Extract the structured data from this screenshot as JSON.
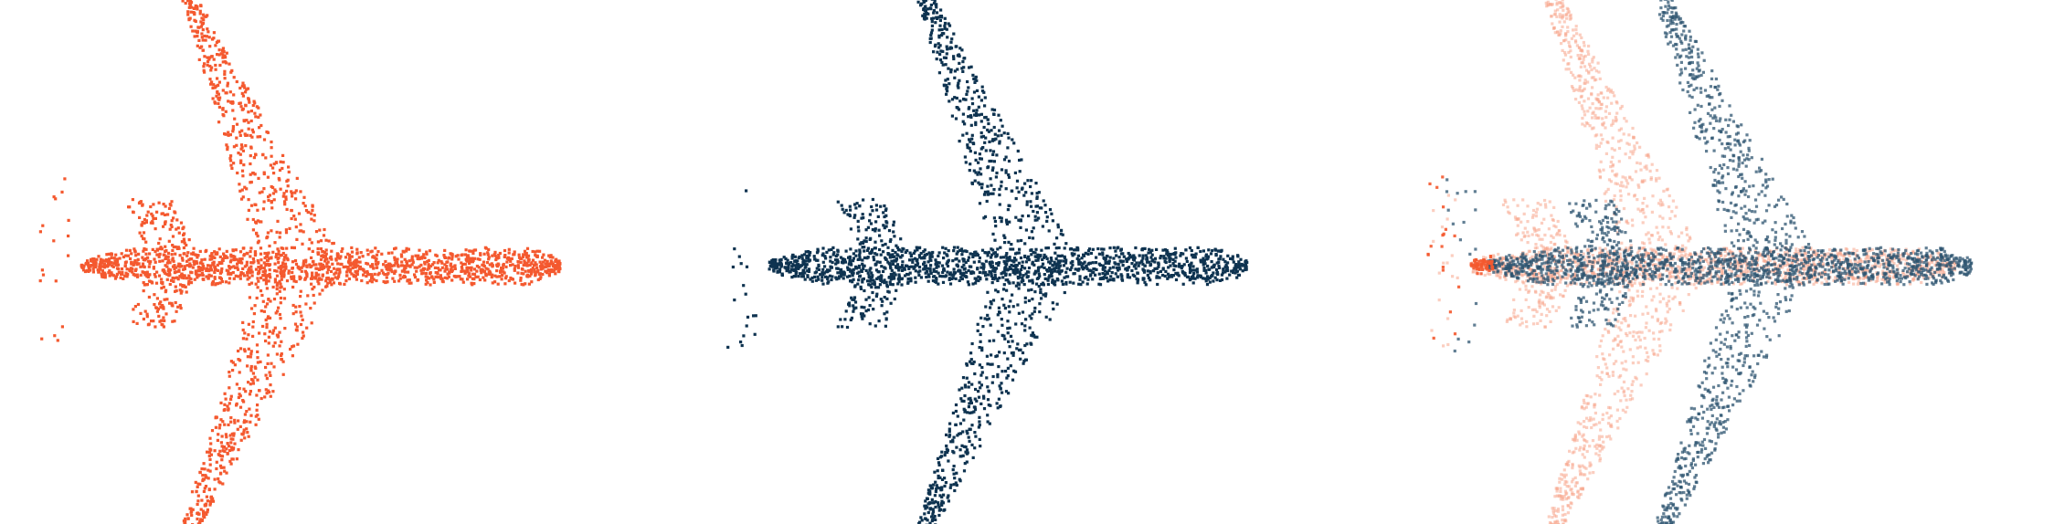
{
  "panels": [
    {
      "id": "source-airplane",
      "name": "",
      "clouds": [
        {
          "id": "source",
          "color": "#f4592f",
          "opacity": 1.0,
          "wing_shift": 0,
          "x_shift": 0,
          "y_shift": 0,
          "seed": 11
        }
      ]
    },
    {
      "id": "target-airplane",
      "name": "",
      "clouds": [
        {
          "id": "target",
          "color": "#0e3350",
          "opacity": 1.0,
          "wing_shift": 0.09,
          "x_shift": 0.02,
          "y_shift": 0.0,
          "seed": 23
        }
      ]
    },
    {
      "id": "overlay-airplane",
      "name": "",
      "clouds": [
        {
          "id": "source-faded",
          "color": "#f7a58c",
          "opacity": 0.55,
          "wing_shift": -0.05,
          "x_shift": 0,
          "y_shift": 0.0,
          "seed": 37
        },
        {
          "id": "target-overlay",
          "color": "#2e5470",
          "opacity": 0.75,
          "wing_shift": 0.12,
          "x_shift": 0.03,
          "y_shift": 0.0,
          "seed": 41
        },
        {
          "id": "source-tail",
          "color": "#f4592f",
          "opacity": 0.9,
          "wing_shift": 0,
          "x_shift": 0,
          "y_shift": 0.0,
          "seed": 53,
          "tail_only": true
        }
      ]
    }
  ],
  "figure": {
    "background": "#ffffff",
    "description_axis": "none",
    "grid": false,
    "legend": "none"
  }
}
